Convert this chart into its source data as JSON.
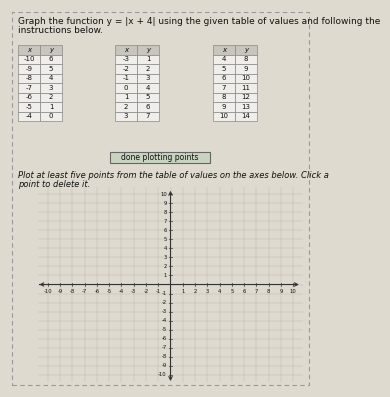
{
  "title_line1": "Graph the function y = |x + 4| using the given table of values and following the",
  "title_line2": "instructions below.",
  "table1": [
    [
      -10,
      6
    ],
    [
      -9,
      5
    ],
    [
      -8,
      4
    ],
    [
      -7,
      3
    ],
    [
      -6,
      2
    ],
    [
      -5,
      1
    ],
    [
      -4,
      0
    ]
  ],
  "table2": [
    [
      -3,
      1
    ],
    [
      -2,
      2
    ],
    [
      -1,
      3
    ],
    [
      0,
      4
    ],
    [
      1,
      5
    ],
    [
      2,
      6
    ],
    [
      3,
      7
    ]
  ],
  "table3": [
    [
      4,
      8
    ],
    [
      5,
      9
    ],
    [
      6,
      10
    ],
    [
      7,
      11
    ],
    [
      8,
      12
    ],
    [
      9,
      13
    ],
    [
      10,
      14
    ]
  ],
  "button_text": "done plotting points",
  "instruction_line1": "Plot at least five points from the table of values on the axes below. Click a",
  "instruction_line2": "point to delete it.",
  "xmin": -10,
  "xmax": 10,
  "ymin": -10,
  "ymax": 10,
  "bg_color": "#dedad0",
  "table_bg": "#f0eeea",
  "header_bg": "#c8c4be",
  "grid_color": "#b8b4aa",
  "axis_color": "#333333",
  "text_color": "#111111",
  "title_fontsize": 6.5,
  "table_fontsize": 5.0,
  "instruction_fontsize": 6.0,
  "button_color": "#c8d4c0",
  "border_color": "#888888"
}
